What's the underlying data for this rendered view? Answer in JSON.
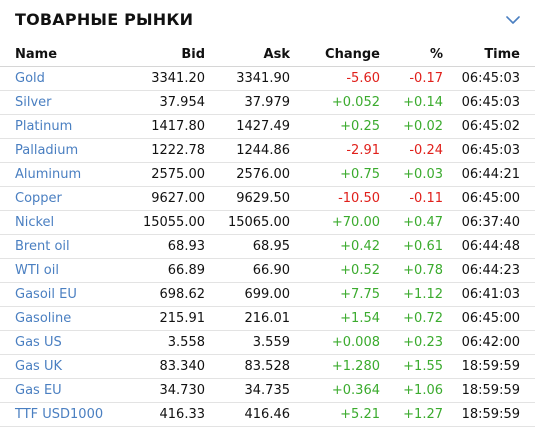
{
  "widget": {
    "title": "ТОВАРНЫЕ РЫНКИ",
    "toggle_icon": "chevron-down-icon"
  },
  "colors": {
    "link": "#4a7fc1",
    "positive": "#3bab2e",
    "negative": "#e0201b"
  },
  "table": {
    "headers": {
      "name": "Name",
      "bid": "Bid",
      "ask": "Ask",
      "change": "Change",
      "percent": "%",
      "time": "Time"
    },
    "rows": [
      {
        "name": "Gold",
        "bid": "3341.20",
        "ask": "3341.90",
        "change": "-5.60",
        "percent": "-0.17",
        "time": "06:45:03",
        "dir": "neg"
      },
      {
        "name": "Silver",
        "bid": "37.954",
        "ask": "37.979",
        "change": "+0.052",
        "percent": "+0.14",
        "time": "06:45:03",
        "dir": "pos"
      },
      {
        "name": "Platinum",
        "bid": "1417.80",
        "ask": "1427.49",
        "change": "+0.25",
        "percent": "+0.02",
        "time": "06:45:02",
        "dir": "pos"
      },
      {
        "name": "Palladium",
        "bid": "1222.78",
        "ask": "1244.86",
        "change": "-2.91",
        "percent": "-0.24",
        "time": "06:45:03",
        "dir": "neg"
      },
      {
        "name": "Aluminum",
        "bid": "2575.00",
        "ask": "2576.00",
        "change": "+0.75",
        "percent": "+0.03",
        "time": "06:44:21",
        "dir": "pos"
      },
      {
        "name": "Copper",
        "bid": "9627.00",
        "ask": "9629.50",
        "change": "-10.50",
        "percent": "-0.11",
        "time": "06:45:00",
        "dir": "neg"
      },
      {
        "name": "Nickel",
        "bid": "15055.00",
        "ask": "15065.00",
        "change": "+70.00",
        "percent": "+0.47",
        "time": "06:37:40",
        "dir": "pos"
      },
      {
        "name": "Brent oil",
        "bid": "68.93",
        "ask": "68.95",
        "change": "+0.42",
        "percent": "+0.61",
        "time": "06:44:48",
        "dir": "pos"
      },
      {
        "name": "WTI oil",
        "bid": "66.89",
        "ask": "66.90",
        "change": "+0.52",
        "percent": "+0.78",
        "time": "06:44:23",
        "dir": "pos"
      },
      {
        "name": "Gasoil EU",
        "bid": "698.62",
        "ask": "699.00",
        "change": "+7.75",
        "percent": "+1.12",
        "time": "06:41:03",
        "dir": "pos"
      },
      {
        "name": "Gasoline",
        "bid": "215.91",
        "ask": "216.01",
        "change": "+1.54",
        "percent": "+0.72",
        "time": "06:45:00",
        "dir": "pos"
      },
      {
        "name": "Gas US",
        "bid": "3.558",
        "ask": "3.559",
        "change": "+0.008",
        "percent": "+0.23",
        "time": "06:42:00",
        "dir": "pos"
      },
      {
        "name": "Gas UK",
        "bid": "83.340",
        "ask": "83.528",
        "change": "+1.280",
        "percent": "+1.55",
        "time": "18:59:59",
        "dir": "pos"
      },
      {
        "name": "Gas EU",
        "bid": "34.730",
        "ask": "34.735",
        "change": "+0.364",
        "percent": "+1.06",
        "time": "18:59:59",
        "dir": "pos"
      },
      {
        "name": "TTF USD1000",
        "bid": "416.33",
        "ask": "416.46",
        "change": "+5.21",
        "percent": "+1.27",
        "time": "18:59:59",
        "dir": "pos"
      }
    ]
  }
}
